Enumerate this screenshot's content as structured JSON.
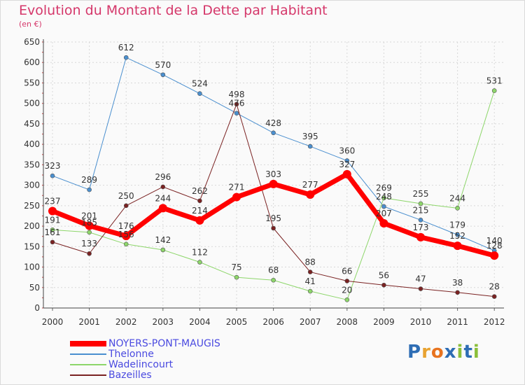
{
  "title": "Evolution du Montant de la Dette par Habitant",
  "subtitle": "(en €)",
  "logo": {
    "text": "Proxiti",
    "colors": [
      "#2e6db4",
      "#e8a331",
      "#e8731f",
      "#2e6db4",
      "#8bbf3a",
      "#2e6db4",
      "#8bbf3a"
    ]
  },
  "chart_data": {
    "type": "line",
    "x": [
      "2000",
      "2001",
      "2002",
      "2003",
      "2004",
      "2005",
      "2006",
      "2007",
      "2008",
      "2009",
      "2010",
      "2011",
      "2012"
    ],
    "ylim": [
      0,
      650
    ],
    "yticks": [
      0,
      50,
      100,
      150,
      200,
      250,
      300,
      350,
      400,
      450,
      500,
      550,
      600,
      650
    ],
    "grid": true,
    "legend_position": "bottom-left",
    "series": [
      {
        "name": "NOYERS-PONT-MAUGIS",
        "color": "#ff0000",
        "width": 7,
        "values": [
          237,
          201,
          176,
          244,
          214,
          271,
          303,
          277,
          327,
          207,
          173,
          152,
          128
        ],
        "labels": [
          "237",
          "201",
          "176",
          "244",
          "214",
          "271",
          "303",
          "277",
          "327",
          "207",
          "173",
          "152",
          "128"
        ]
      },
      {
        "name": "Thelonne",
        "color": "#4a8fcf",
        "width": 1,
        "values": [
          323,
          289,
          612,
          570,
          524,
          476,
          428,
          395,
          360,
          248,
          215,
          179,
          140
        ],
        "labels": [
          "323",
          "289",
          "612",
          "570",
          "524",
          "476",
          "428",
          "395",
          "360",
          "248",
          "215",
          "179",
          "140"
        ]
      },
      {
        "name": "Wadelincourt",
        "color": "#8dd66a",
        "width": 1,
        "values": [
          191,
          185,
          156,
          142,
          112,
          75,
          68,
          41,
          20,
          269,
          255,
          244,
          531
        ],
        "labels": [
          "191",
          "185",
          "156",
          "142",
          "112",
          "75",
          "68",
          "41",
          "20",
          "269",
          "255",
          "244",
          "531"
        ]
      },
      {
        "name": "Bazeilles",
        "color": "#7a2222",
        "width": 1,
        "values": [
          161,
          133,
          250,
          296,
          262,
          498,
          195,
          88,
          66,
          56,
          47,
          38,
          28
        ],
        "labels": [
          "161",
          "133",
          "250",
          "296",
          "262",
          "498",
          "195",
          "88",
          "66",
          "56",
          "47",
          "38",
          "28"
        ]
      }
    ]
  }
}
